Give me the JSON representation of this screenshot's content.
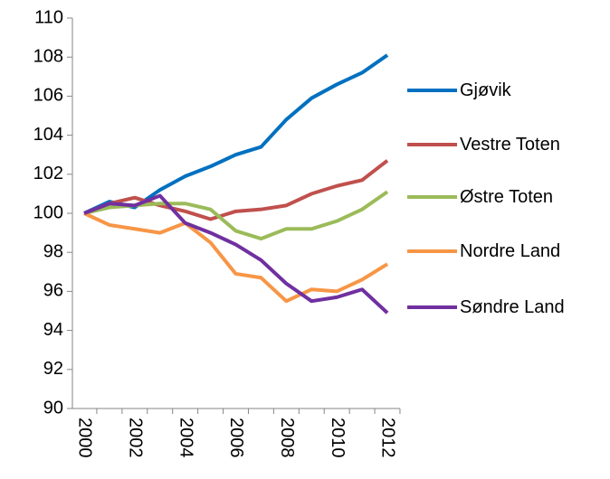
{
  "chart_data": {
    "type": "line",
    "categories": [
      "2000",
      null,
      "2002",
      null,
      "2004",
      null,
      "2006",
      null,
      "2008",
      null,
      "2010",
      null,
      "2012"
    ],
    "ylim": [
      90,
      110
    ],
    "yticks": [
      90,
      92,
      94,
      96,
      98,
      100,
      102,
      104,
      106,
      108,
      110
    ],
    "series": [
      {
        "name": "Gjøvik",
        "color": "#0070c0",
        "values": [
          100,
          100.6,
          100.3,
          101.2,
          101.9,
          102.4,
          103.0,
          103.4,
          104.8,
          105.9,
          106.6,
          107.2,
          108.1
        ]
      },
      {
        "name": "Vestre Toten",
        "color": "#c0504d",
        "values": [
          100,
          100.5,
          100.8,
          100.4,
          100.1,
          99.7,
          100.1,
          100.2,
          100.4,
          101.0,
          101.4,
          101.7,
          102.7
        ]
      },
      {
        "name": "Østre Toten",
        "color": "#9bbb59",
        "values": [
          100,
          100.3,
          100.4,
          100.5,
          100.5,
          100.2,
          99.1,
          98.7,
          99.2,
          99.2,
          99.6,
          100.2,
          101.1
        ]
      },
      {
        "name": "Nordre Land",
        "color": "#f79646",
        "values": [
          100,
          99.4,
          99.2,
          99.0,
          99.5,
          98.5,
          96.9,
          96.7,
          95.5,
          96.1,
          96.0,
          96.6,
          97.4
        ]
      },
      {
        "name": "Søndre Land",
        "color": "#7030a0",
        "values": [
          100,
          100.5,
          100.4,
          100.9,
          99.5,
          99.0,
          98.4,
          97.6,
          96.4,
          95.5,
          95.7,
          96.1,
          94.9
        ]
      }
    ]
  }
}
